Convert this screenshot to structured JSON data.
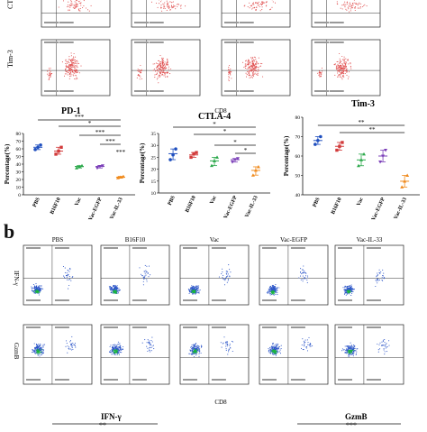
{
  "panel_b_label": "b",
  "panel_a": {
    "row_labels": [
      "CT",
      "Tim-3"
    ],
    "x_axis_label": "CD8",
    "plot_count": 5
  },
  "panel_b": {
    "column_titles": [
      "PBS",
      "B16F10",
      "Vac",
      "Vac-EGFP",
      "Vac-IL-33"
    ],
    "row_labels": [
      "IFN-γ",
      "GzmB"
    ],
    "x_axis_label": "CD8",
    "bottom_titles": [
      "IFN-γ",
      "GzmB"
    ],
    "bottom_sig": [
      "**",
      "***"
    ]
  },
  "colors": {
    "dot_red": "#e05050",
    "dot_blue": "#2b55c8",
    "dot_green": "#1ab83c",
    "grp_PBS": "#1f4fbf",
    "grp_B16F10": "#d23b3b",
    "grp_Vac": "#2aa84a",
    "grp_VacEGFP": "#7b3fb8",
    "grp_VacIL33": "#f08a1c"
  },
  "chart_data": [
    {
      "type": "scatter",
      "title": "PD-1",
      "ylabel": "Percentage(%)",
      "ylim": [
        0,
        80
      ],
      "yticks": [
        0,
        10,
        20,
        30,
        40,
        50,
        60,
        70,
        80
      ],
      "categories": [
        "PBS",
        "B16F10",
        "Vac",
        "Vac-EGFP",
        "Vac-IL-33"
      ],
      "means": [
        62,
        57,
        37,
        37,
        23
      ],
      "points": [
        [
          59,
          62,
          65
        ],
        [
          53,
          57,
          62
        ],
        [
          35,
          37,
          38
        ],
        [
          35,
          37,
          38
        ],
        [
          22,
          23,
          24
        ]
      ],
      "sig": [
        "***",
        "*",
        "***",
        "***",
        "***"
      ]
    },
    {
      "type": "scatter",
      "title": "CTLA-4",
      "ylabel": "Percentage(%)",
      "ylim": [
        10,
        35
      ],
      "yticks": [
        10,
        15,
        20,
        25,
        30,
        35
      ],
      "categories": [
        "PBS",
        "B16F10",
        "Vac",
        "Vac-EGFP",
        "Vac-IL-33"
      ],
      "means": [
        26.5,
        26,
        23.5,
        24,
        19.5
      ],
      "points": [
        [
          24,
          26,
          28.5
        ],
        [
          25,
          26.5,
          27
        ],
        [
          21.5,
          23.5,
          25
        ],
        [
          23,
          24,
          24.5
        ],
        [
          17.5,
          19.5,
          21
        ]
      ],
      "sig": [
        "*",
        "*",
        "*",
        "*"
      ]
    },
    {
      "type": "scatter",
      "title": "Tim-3",
      "ylabel": "Percentage(%)",
      "ylim": [
        40,
        80
      ],
      "yticks": [
        40,
        50,
        60,
        70,
        80
      ],
      "categories": [
        "PBS",
        "B16F10",
        "Vac",
        "Vac-EGFP",
        "Vac-IL-33"
      ],
      "means": [
        68,
        65,
        58,
        60,
        47
      ],
      "points": [
        [
          66,
          68,
          70
        ],
        [
          63,
          65,
          67
        ],
        [
          55,
          58,
          61
        ],
        [
          57,
          60,
          63
        ],
        [
          44,
          47,
          50
        ]
      ],
      "sig": [
        "**",
        "**"
      ]
    }
  ]
}
